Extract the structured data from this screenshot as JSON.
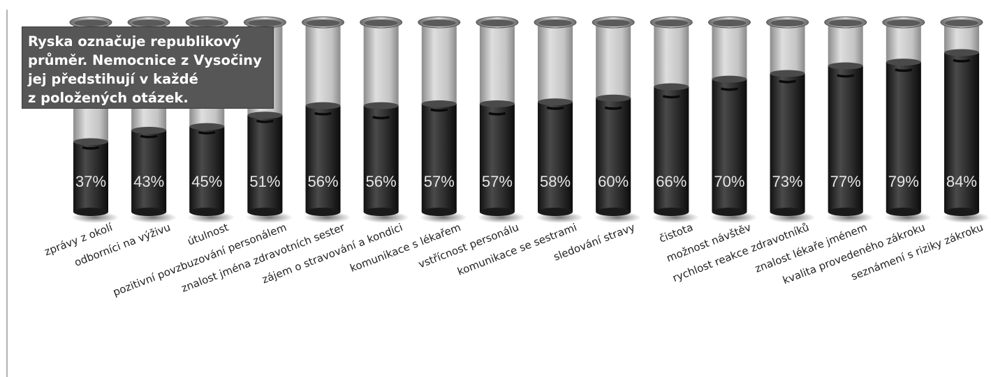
{
  "note": "Ryska označuje republikový\nprůměr. Nemocnice z Vysočiny\njej předstihují v každé\nz položených otázek.",
  "colors": {
    "fill": "#2c2c2c",
    "empty": "#c9c9c9",
    "rim": "#9a9a9a",
    "label": "#e6e6e6",
    "note_bg": "#565656"
  },
  "chart_data": {
    "type": "bar",
    "categories": [
      "zprávy z okolí",
      "odborníci na výživu",
      "útulnost",
      "pozitivní povzbuzování personálem",
      "znalost jména zdravotních sester",
      "zájem o stravování a kondici",
      "komunikace s lékařem",
      "vstřícnost personálu",
      "komunikace se sestrami",
      "sledování stravy",
      "čistota",
      "možnost návštěv",
      "rychlost reakce zdravotníků",
      "znalost lékaře jménem",
      "kvalita provedeného zákroku",
      "seznámení s riziky zákroku"
    ],
    "values": [
      37,
      43,
      45,
      51,
      56,
      56,
      57,
      57,
      58,
      60,
      66,
      70,
      73,
      77,
      79,
      84
    ],
    "value_labels": [
      "37%",
      "43%",
      "45%",
      "51%",
      "56%",
      "56%",
      "57%",
      "57%",
      "58%",
      "60%",
      "66%",
      "70%",
      "73%",
      "77%",
      "79%",
      "84%"
    ],
    "national_average": [
      34,
      40,
      42,
      48,
      52,
      50,
      54,
      52,
      55,
      55,
      61,
      65,
      69,
      72,
      75,
      80
    ],
    "ylim": [
      0,
      100
    ],
    "grid": false
  }
}
